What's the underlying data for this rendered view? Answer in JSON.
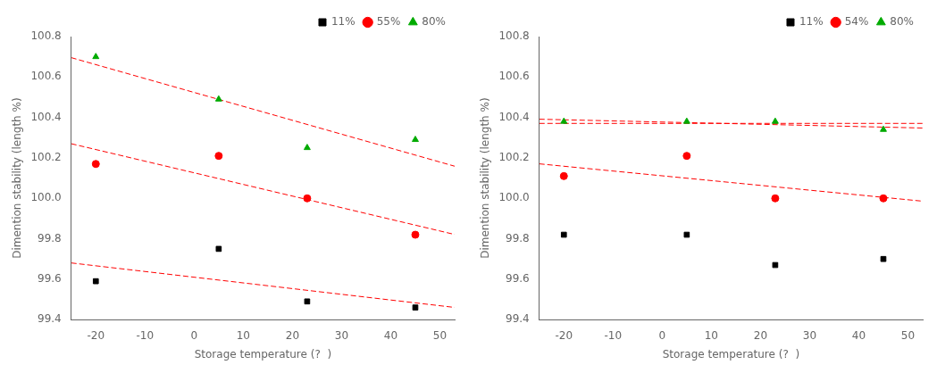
{
  "chart_data": [
    {
      "type": "scatter",
      "xlabel": "Storage temperature (?  )",
      "ylabel": "Dimention stability (length %)",
      "xlim": [
        -25,
        53
      ],
      "ylim": [
        99.4,
        100.8
      ],
      "xticks": [
        -20,
        -10,
        0,
        10,
        20,
        30,
        40,
        50
      ],
      "yticks": [
        99.4,
        99.6,
        99.8,
        {
          "value": 100.0,
          "label": "100.0"
        },
        100.2,
        100.4,
        100.6,
        100.8
      ],
      "grid": false,
      "legend": "upper right",
      "series": [
        {
          "name": "11%",
          "color": "#000000",
          "marker": "square",
          "x": [
            -20,
            5,
            23,
            45
          ],
          "values": [
            99.59,
            99.75,
            99.49,
            99.46
          ]
        },
        {
          "name": "55%",
          "color": "#ff0000",
          "marker": "circle",
          "x": [
            -20,
            5,
            23,
            45
          ],
          "values": [
            100.17,
            100.21,
            100.0,
            99.82
          ]
        },
        {
          "name": "80%",
          "color": "#00aa00",
          "marker": "triangle",
          "x": [
            -20,
            5,
            23,
            45
          ],
          "values": [
            100.7,
            100.49,
            100.25,
            100.29
          ]
        },
        {
          "type": "line",
          "line_style": "dashed",
          "color": "#ff0000",
          "x": [
            -25,
            53
          ],
          "values": [
            99.6804,
            99.4604
          ]
        },
        {
          "type": "line",
          "line_style": "dashed",
          "color": "#ff0000",
          "x": [
            -25,
            53
          ],
          "values": [
            100.2701,
            99.8213
          ]
        },
        {
          "type": "line",
          "line_style": "dashed",
          "color": "#ff0000",
          "x": [
            -25,
            53
          ],
          "values": [
            100.6958,
            100.1589
          ]
        }
      ]
    },
    {
      "type": "scatter",
      "xlabel": "Storage temperature (?  )",
      "ylabel": "Dimention stability (length %)",
      "xlim": [
        -25,
        53
      ],
      "ylim": [
        99.4,
        100.8
      ],
      "xticks": [
        -20,
        -10,
        0,
        10,
        20,
        30,
        40,
        50
      ],
      "yticks": [
        99.4,
        99.6,
        99.8,
        {
          "value": 100.0,
          "label": "100.0"
        },
        100.2,
        100.4,
        100.6,
        100.8
      ],
      "grid": false,
      "legend": "upper right",
      "series": [
        {
          "name": "11%",
          "color": "#000000",
          "marker": "square",
          "x": [
            -20,
            5,
            23,
            45
          ],
          "values": [
            99.82,
            99.82,
            99.67,
            99.7
          ]
        },
        {
          "name": "54%",
          "color": "#ff0000",
          "marker": "circle",
          "x": [
            -20,
            5,
            23,
            45
          ],
          "values": [
            100.11,
            100.21,
            100.0,
            100.0
          ]
        },
        {
          "name": "80%",
          "color": "#00aa00",
          "marker": "triangle",
          "x": [
            -20,
            5,
            23,
            45
          ],
          "values": [
            100.38,
            100.38,
            100.38,
            100.34
          ]
        },
        {
          "type": "line",
          "line_style": "dashed",
          "color": "#ff0000",
          "x": [
            -25,
            53
          ],
          "values": [
            100.1706,
            99.9859
          ]
        },
        {
          "type": "line",
          "line_style": "dashed",
          "color": "#ff0000",
          "x": [
            -25,
            53
          ],
          "values": [
            100.3913,
            100.3478
          ]
        },
        {
          "type": "line",
          "line_style": "dashed",
          "color": "#ff0000",
          "x": [
            -25,
            53
          ],
          "values": [
            100.3706,
            100.3706
          ]
        }
      ]
    }
  ]
}
